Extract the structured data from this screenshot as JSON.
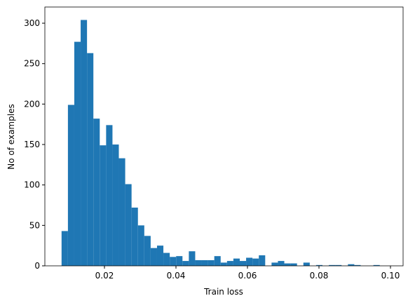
{
  "chart_data": {
    "type": "histogram",
    "xlabel": "Train loss",
    "ylabel": "No of examples",
    "color": "#1f77b4",
    "bins": [
      0.008,
      0.00978,
      0.01156,
      0.01334,
      0.01512,
      0.0169,
      0.01868,
      0.02046,
      0.02224,
      0.02402,
      0.0258,
      0.02758,
      0.02936,
      0.03114,
      0.03292,
      0.0347,
      0.03648,
      0.03826,
      0.04004,
      0.04182,
      0.0436,
      0.04538,
      0.04716,
      0.04894,
      0.05072,
      0.0525,
      0.05428,
      0.05606,
      0.05784,
      0.05962,
      0.0614,
      0.06318,
      0.06496,
      0.06674,
      0.06852,
      0.0703,
      0.07208,
      0.07386,
      0.07564,
      0.07742,
      0.0792,
      0.08098,
      0.08276,
      0.08454,
      0.08632,
      0.0881,
      0.08988,
      0.09166,
      0.09344,
      0.09522,
      0.097
    ],
    "values": [
      43,
      199,
      277,
      304,
      263,
      182,
      149,
      174,
      150,
      133,
      101,
      72,
      50,
      37,
      22,
      25,
      16,
      11,
      12,
      6,
      18,
      7,
      7,
      7,
      12,
      4,
      6,
      9,
      6,
      10,
      9,
      13,
      0,
      4,
      6,
      3,
      3,
      0,
      4,
      0,
      1,
      0,
      1,
      1,
      0,
      2,
      1,
      0,
      0,
      1
    ],
    "xlim": [
      0.00333,
      0.10353
    ],
    "xticks": [
      {
        "value": 0.02,
        "label": "0.02"
      },
      {
        "value": 0.04,
        "label": "0.04"
      },
      {
        "value": 0.06,
        "label": "0.06"
      },
      {
        "value": 0.08,
        "label": "0.08"
      },
      {
        "value": 0.1,
        "label": "0.10"
      }
    ],
    "ylim": [
      0,
      320
    ],
    "yticks": [
      0,
      50,
      100,
      150,
      200,
      250,
      300
    ]
  }
}
